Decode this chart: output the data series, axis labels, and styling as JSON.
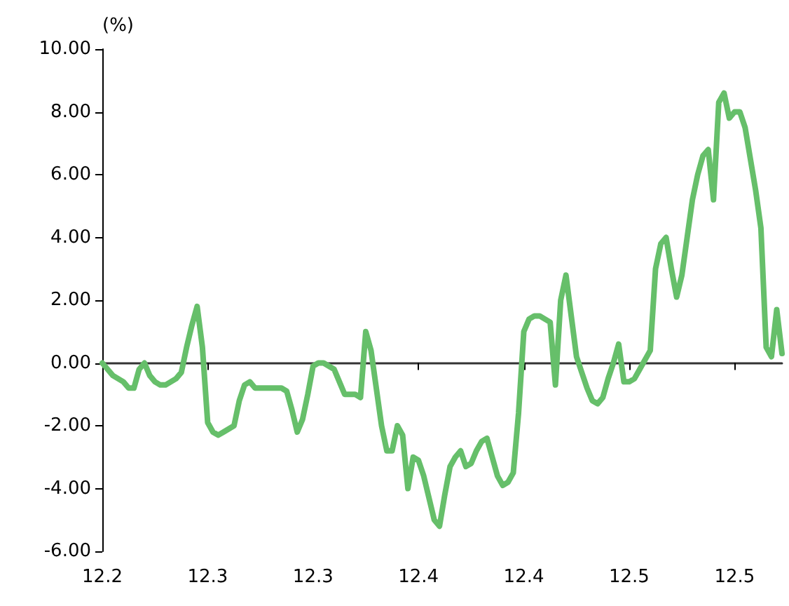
{
  "chart_data": {
    "type": "line",
    "ylabel": "(%)",
    "categories": [
      "12.2",
      null,
      null,
      null,
      null,
      null,
      null,
      null,
      null,
      null,
      null,
      null,
      null,
      null,
      null,
      null,
      null,
      null,
      null,
      null,
      "12.3",
      null,
      null,
      null,
      null,
      null,
      null,
      null,
      null,
      null,
      null,
      null,
      null,
      null,
      null,
      null,
      null,
      null,
      null,
      null,
      "12.3",
      null,
      null,
      null,
      null,
      null,
      null,
      null,
      null,
      null,
      null,
      null,
      null,
      null,
      null,
      null,
      null,
      null,
      null,
      null,
      "12.4",
      null,
      null,
      null,
      null,
      null,
      null,
      null,
      null,
      null,
      null,
      null,
      null,
      null,
      null,
      null,
      null,
      null,
      null,
      null,
      "12.4",
      null,
      null,
      null,
      null,
      null,
      null,
      null,
      null,
      null,
      null,
      null,
      null,
      null,
      null,
      null,
      null,
      null,
      null,
      null,
      "12.5",
      null,
      null,
      null,
      null,
      null,
      null,
      null,
      null,
      null,
      null,
      null,
      null,
      null,
      null,
      null,
      null,
      null,
      null,
      null,
      "12.5",
      null,
      null,
      null,
      null,
      null,
      null,
      null,
      null,
      null
    ],
    "series": [
      {
        "color": "#66bf6a",
        "values": [
          0,
          -0.2,
          -0.4,
          -0.5,
          -0.6,
          -0.8,
          -0.8,
          -0.2,
          0,
          -0.4,
          -0.6,
          -0.7,
          -0.7,
          -0.6,
          -0.5,
          -0.3,
          0.5,
          1.2,
          1.8,
          0.5,
          -1.9,
          -2.2,
          -2.3,
          -2.2,
          -2.1,
          -2.0,
          -1.2,
          -0.7,
          -0.6,
          -0.8,
          -0.8,
          -0.8,
          -0.8,
          -0.8,
          -0.8,
          -0.9,
          -1.5,
          -2.2,
          -1.8,
          -1.0,
          -0.1,
          0,
          0,
          -0.1,
          -0.2,
          -0.6,
          -1.0,
          -1.0,
          -1.0,
          -1.1,
          1.0,
          0.4,
          -0.8,
          -2.0,
          -2.8,
          -2.8,
          -2.0,
          -2.3,
          -4.0,
          -3.0,
          -3.1,
          -3.6,
          -4.3,
          -5.0,
          -5.2,
          -4.2,
          -3.3,
          -3.0,
          -2.8,
          -3.3,
          -3.2,
          -2.8,
          -2.5,
          -2.4,
          -3.0,
          -3.6,
          -3.9,
          -3.8,
          -3.5,
          -1.6,
          1.0,
          1.4,
          1.5,
          1.5,
          1.4,
          1.3,
          -0.7,
          2.0,
          2.8,
          1.5,
          0.2,
          -0.3,
          -0.8,
          -1.2,
          -1.3,
          -1.1,
          -0.5,
          0,
          0.6,
          -0.6,
          -0.6,
          -0.5,
          -0.2,
          0.1,
          0.4,
          3.0,
          3.8,
          4.0,
          3.0,
          2.1,
          2.8,
          4.0,
          5.2,
          6.0,
          6.6,
          6.8,
          5.2,
          8.3,
          8.6,
          7.8,
          8.0,
          8.0,
          7.5,
          6.5,
          5.5,
          4.3,
          0.5,
          0.2,
          1.7,
          0.3
        ]
      }
    ],
    "ylim": [
      -6,
      10
    ],
    "yticks": [
      {
        "value": -6,
        "label": "-6.00"
      },
      {
        "value": -4,
        "label": "-4.00"
      },
      {
        "value": -2,
        "label": "-2.00"
      },
      {
        "value": 0,
        "label": "0.00"
      },
      {
        "value": 2,
        "label": "2.00"
      },
      {
        "value": 4,
        "label": "4.00"
      },
      {
        "value": 6,
        "label": "6.00"
      },
      {
        "value": 8,
        "label": "8.00"
      },
      {
        "value": 10,
        "label": "10.00"
      }
    ],
    "marker": "none",
    "line_style": "solid"
  }
}
